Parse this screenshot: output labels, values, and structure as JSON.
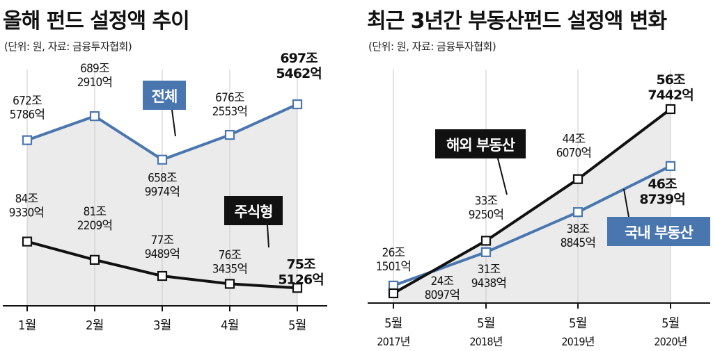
{
  "chart_data": [
    {
      "type": "line",
      "title": "올해 펀드 설정액 추이",
      "source_note": "(단위: 원, 자료: 금융투자협회)",
      "categories": [
        "1월",
        "2월",
        "3월",
        "4월",
        "5월"
      ],
      "unit": "억원",
      "series": [
        {
          "name": "전체",
          "color": "#4a76b0",
          "values": [
            6725786,
            6892910,
            6589974,
            6762553,
            6975462
          ],
          "labels": [
            [
              "672조",
              "5786억"
            ],
            [
              "689조",
              "2910억"
            ],
            [
              "658조",
              "9974억"
            ],
            [
              "676조",
              "2553억"
            ],
            [
              "697조",
              "5462억"
            ]
          ]
        },
        {
          "name": "주식형",
          "color": "#111111",
          "values": [
            849330,
            812209,
            779489,
            763435,
            755126
          ],
          "labels": [
            [
              "84조",
              "9330억"
            ],
            [
              "81조",
              "2209억"
            ],
            [
              "77조",
              "9489억"
            ],
            [
              "76조",
              "3435억"
            ],
            [
              "75조",
              "5126억"
            ]
          ]
        }
      ]
    },
    {
      "type": "line",
      "title": "최근 3년간 부동산펀드 설정액 변화",
      "source_note": "(단위: 원, 자료: 금융투자협회)",
      "categories": [
        [
          "5월",
          "2017년"
        ],
        [
          "5월",
          "2018년"
        ],
        [
          "5월",
          "2019년"
        ],
        [
          "5월",
          "2020년"
        ]
      ],
      "unit": "억원",
      "series": [
        {
          "name": "해외 부동산",
          "color": "#111111",
          "values": [
            248097,
            339250,
            446070,
            567442
          ],
          "labels": [
            [
              "24조",
              "8097억"
            ],
            [
              "33조",
              "9250억"
            ],
            [
              "44조",
              "6070억"
            ],
            [
              "56조",
              "7442억"
            ]
          ]
        },
        {
          "name": "국내 부동산",
          "color": "#4a76b0",
          "values": [
            261501,
            319438,
            388845,
            468739
          ],
          "labels": [
            [
              "26조",
              "1501억"
            ],
            [
              "31조",
              "9438억"
            ],
            [
              "38조",
              "8845억"
            ],
            [
              "46조",
              "8739억"
            ]
          ]
        }
      ]
    }
  ]
}
